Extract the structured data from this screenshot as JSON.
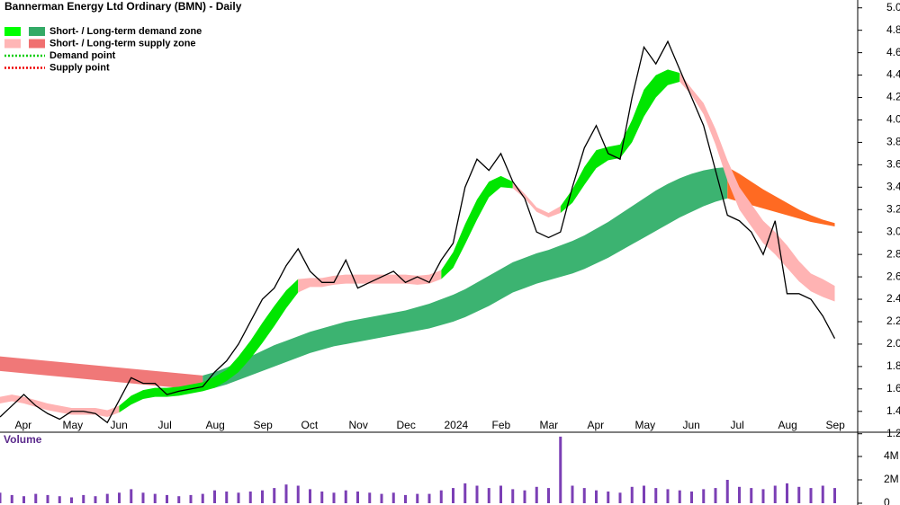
{
  "chart_data": [
    {
      "type": "line",
      "title": "Bannerman Energy Ltd Ordinary (BMN) - Daily",
      "legend": [
        "Short- / Long-term demand zone",
        "Short- / Long-term supply zone",
        "Demand point",
        "Supply point"
      ],
      "categories": [
        null,
        null,
        "Apr",
        null,
        null,
        null,
        "May",
        null,
        null,
        null,
        "Jun",
        null,
        null,
        null,
        "Jul",
        null,
        null,
        null,
        "Aug",
        null,
        null,
        null,
        "Sep",
        null,
        null,
        null,
        "Oct",
        null,
        null,
        null,
        "Nov",
        null,
        null,
        null,
        "Dec",
        null,
        null,
        null,
        "2024",
        null,
        null,
        null,
        "Feb",
        null,
        null,
        null,
        "Mar",
        null,
        null,
        null,
        "Apr",
        null,
        null,
        null,
        "May",
        null,
        null,
        null,
        "Jun",
        null,
        null,
        null,
        "Jul",
        null,
        null,
        null,
        "Aug",
        null,
        null,
        null,
        "Sep"
      ],
      "series": [
        {
          "color": "#000000",
          "values": [
            1.35,
            1.45,
            1.55,
            1.45,
            1.38,
            1.33,
            1.4,
            1.4,
            1.38,
            1.3,
            1.5,
            1.7,
            1.65,
            1.65,
            1.55,
            1.58,
            1.6,
            1.62,
            1.75,
            1.85,
            2.0,
            2.2,
            2.4,
            2.5,
            2.7,
            2.85,
            2.65,
            2.55,
            2.55,
            2.75,
            2.5,
            2.55,
            2.6,
            2.65,
            2.55,
            2.6,
            2.55,
            2.75,
            2.9,
            3.4,
            3.65,
            3.55,
            3.7,
            3.45,
            3.3,
            3.0,
            2.95,
            3.0,
            3.4,
            3.75,
            3.95,
            3.7,
            3.65,
            4.2,
            4.65,
            4.5,
            4.7,
            4.45,
            4.2,
            3.95,
            3.55,
            3.15,
            3.1,
            3.0,
            2.8,
            3.1,
            2.45,
            2.45,
            2.4,
            2.25,
            2.05
          ]
        }
      ],
      "zones": [
        {
          "color": "#f07878",
          "lower": [
            1.76,
            1.75,
            1.74,
            1.73,
            1.72,
            1.71,
            1.7,
            1.69,
            1.68,
            1.67,
            1.66,
            1.65,
            1.64,
            1.63,
            1.62,
            1.61,
            1.6,
            1.59,
            null,
            null,
            null,
            null,
            null,
            null,
            null,
            null,
            null,
            null,
            null,
            null,
            null,
            null,
            null,
            null,
            null,
            null,
            null,
            null,
            null,
            null,
            null,
            null,
            null,
            null,
            null,
            null,
            null,
            null,
            null,
            null,
            null,
            null,
            null,
            null,
            null,
            null,
            null,
            null,
            null,
            null,
            null,
            null,
            null,
            null,
            null,
            null,
            null,
            null,
            null,
            null,
            null
          ],
          "upper": [
            1.89,
            1.88,
            1.87,
            1.86,
            1.85,
            1.84,
            1.83,
            1.82,
            1.81,
            1.8,
            1.79,
            1.78,
            1.77,
            1.76,
            1.75,
            1.74,
            1.73,
            1.72,
            null,
            null,
            null,
            null,
            null,
            null,
            null,
            null,
            null,
            null,
            null,
            null,
            null,
            null,
            null,
            null,
            null,
            null,
            null,
            null,
            null,
            null,
            null,
            null,
            null,
            null,
            null,
            null,
            null,
            null,
            null,
            null,
            null,
            null,
            null,
            null,
            null,
            null,
            null,
            null,
            null,
            null,
            null,
            null,
            null,
            null,
            null,
            null,
            null,
            null,
            null,
            null,
            null
          ]
        },
        {
          "color": "#3cb371",
          "lower": [
            null,
            null,
            null,
            null,
            null,
            null,
            null,
            null,
            null,
            null,
            null,
            null,
            null,
            null,
            null,
            null,
            null,
            1.59,
            1.61,
            1.64,
            1.68,
            1.72,
            1.76,
            1.8,
            1.84,
            1.88,
            1.92,
            1.95,
            1.98,
            2.0,
            2.02,
            2.04,
            2.06,
            2.08,
            2.1,
            2.12,
            2.14,
            2.17,
            2.2,
            2.24,
            2.29,
            2.34,
            2.4,
            2.46,
            2.5,
            2.54,
            2.57,
            2.6,
            2.63,
            2.67,
            2.72,
            2.77,
            2.83,
            2.89,
            2.95,
            3.01,
            3.07,
            3.13,
            3.18,
            3.23,
            3.27,
            3.3,
            null,
            null,
            null,
            null,
            null,
            null,
            null,
            null,
            null
          ],
          "upper": [
            null,
            null,
            null,
            null,
            null,
            null,
            null,
            null,
            null,
            null,
            null,
            null,
            null,
            null,
            null,
            null,
            null,
            1.72,
            1.75,
            1.79,
            1.84,
            1.89,
            1.94,
            1.99,
            2.03,
            2.07,
            2.11,
            2.14,
            2.17,
            2.2,
            2.22,
            2.24,
            2.26,
            2.28,
            2.3,
            2.33,
            2.36,
            2.4,
            2.44,
            2.49,
            2.55,
            2.61,
            2.67,
            2.73,
            2.77,
            2.81,
            2.84,
            2.88,
            2.92,
            2.97,
            3.03,
            3.09,
            3.16,
            3.23,
            3.3,
            3.37,
            3.43,
            3.48,
            3.52,
            3.55,
            3.57,
            3.58,
            null,
            null,
            null,
            null,
            null,
            null,
            null,
            null,
            null
          ]
        },
        {
          "color": "#ff6a22",
          "lower": [
            null,
            null,
            null,
            null,
            null,
            null,
            null,
            null,
            null,
            null,
            null,
            null,
            null,
            null,
            null,
            null,
            null,
            null,
            null,
            null,
            null,
            null,
            null,
            null,
            null,
            null,
            null,
            null,
            null,
            null,
            null,
            null,
            null,
            null,
            null,
            null,
            null,
            null,
            null,
            null,
            null,
            null,
            null,
            null,
            null,
            null,
            null,
            null,
            null,
            null,
            null,
            null,
            null,
            null,
            null,
            null,
            null,
            null,
            null,
            null,
            null,
            3.3,
            3.27,
            3.24,
            3.21,
            3.18,
            3.15,
            3.12,
            3.09,
            3.07,
            3.05
          ],
          "upper": [
            null,
            null,
            null,
            null,
            null,
            null,
            null,
            null,
            null,
            null,
            null,
            null,
            null,
            null,
            null,
            null,
            null,
            null,
            null,
            null,
            null,
            null,
            null,
            null,
            null,
            null,
            null,
            null,
            null,
            null,
            null,
            null,
            null,
            null,
            null,
            null,
            null,
            null,
            null,
            null,
            null,
            null,
            null,
            null,
            null,
            null,
            null,
            null,
            null,
            null,
            null,
            null,
            null,
            null,
            null,
            null,
            null,
            null,
            null,
            null,
            null,
            3.58,
            3.52,
            3.45,
            3.38,
            3.32,
            3.26,
            3.2,
            3.15,
            3.11,
            3.08
          ]
        },
        {
          "color": "#00e600",
          "lower": [
            null,
            null,
            null,
            null,
            null,
            null,
            null,
            null,
            null,
            null,
            1.39,
            1.46,
            1.51,
            1.53,
            1.53,
            1.54,
            1.56,
            1.58,
            1.61,
            1.67,
            1.75,
            1.87,
            2.01,
            2.16,
            2.32,
            2.46,
            null,
            null,
            null,
            null,
            null,
            null,
            null,
            null,
            null,
            null,
            null,
            2.58,
            2.68,
            2.89,
            3.11,
            3.31,
            3.4,
            3.39,
            null,
            null,
            null,
            3.17,
            3.26,
            3.42,
            3.57,
            3.64,
            3.66,
            3.8,
            4.03,
            4.2,
            4.31,
            4.34,
            null,
            null,
            null,
            null,
            null,
            null,
            null,
            null,
            null,
            null,
            null,
            null,
            null
          ],
          "upper": [
            null,
            null,
            null,
            null,
            null,
            null,
            null,
            null,
            null,
            null,
            1.45,
            1.54,
            1.59,
            1.61,
            1.61,
            1.62,
            1.64,
            1.66,
            1.71,
            1.77,
            1.89,
            2.03,
            2.19,
            2.34,
            2.48,
            2.58,
            null,
            null,
            null,
            null,
            null,
            null,
            null,
            null,
            null,
            null,
            null,
            2.66,
            2.82,
            3.07,
            3.29,
            3.45,
            3.5,
            3.45,
            null,
            null,
            null,
            3.23,
            3.38,
            3.58,
            3.73,
            3.76,
            3.78,
            4.0,
            4.27,
            4.4,
            4.45,
            4.42,
            null,
            null,
            null,
            null,
            null,
            null,
            null,
            null,
            null,
            null,
            null,
            null,
            null
          ]
        },
        {
          "color": "#ffb3b3",
          "lower": [
            1.47,
            1.49,
            1.47,
            1.44,
            1.41,
            1.39,
            1.37,
            1.37,
            1.37,
            1.35,
            1.39,
            null,
            null,
            null,
            null,
            null,
            null,
            null,
            null,
            null,
            null,
            null,
            null,
            null,
            null,
            2.46,
            2.51,
            2.51,
            2.53,
            2.54,
            2.54,
            2.54,
            2.54,
            2.54,
            2.54,
            2.53,
            2.54,
            2.58,
            null,
            null,
            null,
            null,
            null,
            3.39,
            3.3,
            3.18,
            3.13,
            3.17,
            null,
            null,
            null,
            null,
            null,
            null,
            null,
            null,
            null,
            4.34,
            4.22,
            4.05,
            3.78,
            3.46,
            3.2,
            3.05,
            2.9,
            2.8,
            2.68,
            2.56,
            2.47,
            2.42,
            2.38
          ],
          "upper": [
            1.53,
            1.55,
            1.53,
            1.5,
            1.47,
            1.45,
            1.43,
            1.43,
            1.43,
            1.41,
            1.45,
            null,
            null,
            null,
            null,
            null,
            null,
            null,
            null,
            null,
            null,
            null,
            null,
            null,
            null,
            2.58,
            2.59,
            2.59,
            2.61,
            2.62,
            2.62,
            2.62,
            2.62,
            2.62,
            2.62,
            2.61,
            2.62,
            2.66,
            null,
            null,
            null,
            null,
            null,
            3.45,
            3.34,
            3.22,
            3.17,
            3.23,
            null,
            null,
            null,
            null,
            null,
            null,
            null,
            null,
            null,
            4.42,
            4.28,
            4.15,
            3.92,
            3.64,
            3.4,
            3.25,
            3.1,
            3.0,
            2.88,
            2.74,
            2.63,
            2.58,
            2.52
          ]
        }
      ],
      "legend_colors": [
        [
          "#00ff00",
          "#33aa66"
        ],
        [
          "#ffb6b6",
          "#f07070"
        ],
        [
          "#00cc00"
        ],
        [
          "#ee0000"
        ]
      ],
      "ylim": [
        1.1,
        5.07
      ],
      "yticks": [
        1.2,
        1.4,
        1.6,
        1.8,
        {
          "value": 2,
          "label": "2.0"
        },
        2.2,
        2.4,
        2.6,
        2.8,
        {
          "value": 3,
          "label": "3.0"
        },
        3.2,
        3.4,
        3.6,
        3.8,
        {
          "value": 4,
          "label": "4.0"
        },
        4.2,
        4.4,
        4.6,
        4.8,
        {
          "value": 5,
          "label": "5.0"
        }
      ]
    },
    {
      "type": "bar",
      "title": "Volume",
      "color": "#7b3fb5",
      "values": [
        900000,
        700000,
        600000,
        800000,
        700000,
        600000,
        500000,
        700000,
        600000,
        800000,
        900000,
        1200000,
        900000,
        800000,
        700000,
        600000,
        700000,
        800000,
        1100000,
        1000000,
        900000,
        1000000,
        1100000,
        1300000,
        1600000,
        1500000,
        1200000,
        1000000,
        900000,
        1100000,
        1000000,
        900000,
        800000,
        900000,
        700000,
        800000,
        800000,
        1100000,
        1300000,
        1700000,
        1500000,
        1300000,
        1500000,
        1200000,
        1100000,
        1400000,
        1300000,
        5700000,
        1500000,
        1300000,
        1100000,
        1000000,
        900000,
        1400000,
        1500000,
        1300000,
        1200000,
        1100000,
        1000000,
        1200000,
        1300000,
        2000000,
        1400000,
        1300000,
        1200000,
        1500000,
        1700000,
        1400000,
        1300000,
        1500000,
        1300000
      ],
      "ylim": [
        0,
        6000000
      ],
      "yticks": [
        0,
        {
          "value": 2000000,
          "label": "2M"
        },
        {
          "value": 4000000,
          "label": "4M"
        }
      ]
    }
  ]
}
